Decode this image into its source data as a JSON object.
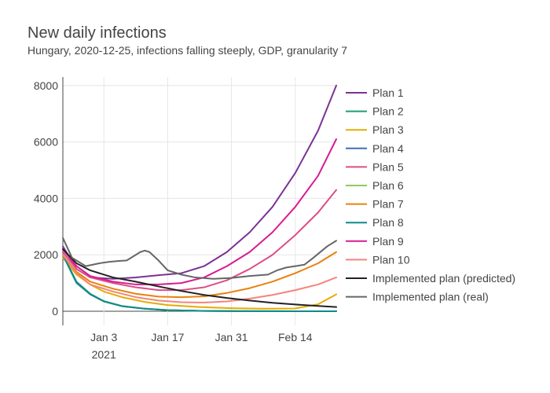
{
  "chart_data": {
    "type": "line",
    "title": "New daily infections",
    "subtitle": "Hungary, 2020-12-25, infections falling steeply, GDP, granularity 7",
    "x_axis": {
      "type": "date",
      "range": [
        "2020-12-25",
        "2021-02-23"
      ],
      "ticks": [
        {
          "date": "2021-01-03",
          "label": "Jan 3",
          "sublabel": "2021"
        },
        {
          "date": "2021-01-17",
          "label": "Jan 17"
        },
        {
          "date": "2021-01-31",
          "label": "Jan 31"
        },
        {
          "date": "2021-02-14",
          "label": "Feb 14"
        }
      ]
    },
    "y_axis": {
      "range": [
        -500,
        8300
      ],
      "ticks": [
        0,
        2000,
        4000,
        6000,
        8000
      ],
      "tick_labels": [
        "0",
        "2000",
        "4000",
        "6000",
        "8000"
      ]
    },
    "grid": true,
    "legend_position": "right",
    "series": [
      {
        "name": "Plan 1",
        "color": "#7b3294",
        "points": [
          [
            "2020-12-25",
            2300
          ],
          [
            "2020-12-28",
            1500
          ],
          [
            "2020-12-31",
            1200
          ],
          [
            "2021-01-05",
            1150
          ],
          [
            "2021-01-10",
            1200
          ],
          [
            "2021-01-15",
            1280
          ],
          [
            "2021-01-20",
            1350
          ],
          [
            "2021-01-25",
            1600
          ],
          [
            "2021-01-30",
            2100
          ],
          [
            "2021-02-04",
            2800
          ],
          [
            "2021-02-09",
            3700
          ],
          [
            "2021-02-14",
            4900
          ],
          [
            "2021-02-19",
            6400
          ],
          [
            "2021-02-23",
            8000
          ]
        ]
      },
      {
        "name": "Plan 2",
        "color": "#1b9e77",
        "points": [
          [
            "2020-12-25",
            2000
          ],
          [
            "2020-12-28",
            1000
          ],
          [
            "2020-12-31",
            600
          ],
          [
            "2021-01-03",
            350
          ],
          [
            "2021-01-07",
            180
          ],
          [
            "2021-01-12",
            90
          ],
          [
            "2021-01-17",
            40
          ],
          [
            "2021-01-24",
            15
          ],
          [
            "2021-02-01",
            5
          ],
          [
            "2021-02-23",
            0
          ]
        ]
      },
      {
        "name": "Plan 3",
        "color": "#e6ab02",
        "points": [
          [
            "2020-12-25",
            1900
          ],
          [
            "2020-12-28",
            1300
          ],
          [
            "2020-12-31",
            950
          ],
          [
            "2021-01-03",
            700
          ],
          [
            "2021-01-07",
            500
          ],
          [
            "2021-01-12",
            330
          ],
          [
            "2021-01-17",
            220
          ],
          [
            "2021-01-24",
            150
          ],
          [
            "2021-01-31",
            110
          ],
          [
            "2021-02-07",
            90
          ],
          [
            "2021-02-14",
            100
          ],
          [
            "2021-02-19",
            250
          ],
          [
            "2021-02-23",
            600
          ]
        ]
      },
      {
        "name": "Plan 4",
        "color": "#3f6fb5",
        "points": [
          [
            "2020-12-25",
            2000
          ],
          [
            "2020-12-28",
            1050
          ],
          [
            "2020-12-31",
            620
          ],
          [
            "2021-01-03",
            360
          ],
          [
            "2021-01-07",
            185
          ],
          [
            "2021-01-12",
            92
          ],
          [
            "2021-01-17",
            42
          ],
          [
            "2021-01-24",
            16
          ],
          [
            "2021-02-01",
            5
          ],
          [
            "2021-02-23",
            0
          ]
        ]
      },
      {
        "name": "Plan 5",
        "color": "#d94f86",
        "points": [
          [
            "2020-12-25",
            2100
          ],
          [
            "2020-12-28",
            1500
          ],
          [
            "2020-12-31",
            1200
          ],
          [
            "2021-01-05",
            1000
          ],
          [
            "2021-01-10",
            850
          ],
          [
            "2021-01-15",
            750
          ],
          [
            "2021-01-20",
            750
          ],
          [
            "2021-01-25",
            850
          ],
          [
            "2021-01-30",
            1100
          ],
          [
            "2021-02-04",
            1500
          ],
          [
            "2021-02-09",
            2000
          ],
          [
            "2021-02-14",
            2700
          ],
          [
            "2021-02-19",
            3500
          ],
          [
            "2021-02-23",
            4300
          ]
        ]
      },
      {
        "name": "Plan 6",
        "color": "#8fc95f",
        "points": [
          [
            "2020-12-25",
            2000
          ],
          [
            "2020-12-28",
            1030
          ],
          [
            "2020-12-31",
            610
          ],
          [
            "2021-01-03",
            355
          ],
          [
            "2021-01-07",
            182
          ],
          [
            "2021-01-12",
            91
          ],
          [
            "2021-01-17",
            41
          ],
          [
            "2021-01-24",
            15
          ],
          [
            "2021-02-01",
            5
          ],
          [
            "2021-02-23",
            0
          ]
        ]
      },
      {
        "name": "Plan 7",
        "color": "#e8820c",
        "points": [
          [
            "2020-12-25",
            2000
          ],
          [
            "2020-12-28",
            1400
          ],
          [
            "2020-12-31",
            1050
          ],
          [
            "2021-01-05",
            800
          ],
          [
            "2021-01-10",
            620
          ],
          [
            "2021-01-15",
            520
          ],
          [
            "2021-01-20",
            500
          ],
          [
            "2021-01-25",
            530
          ],
          [
            "2021-01-30",
            650
          ],
          [
            "2021-02-04",
            820
          ],
          [
            "2021-02-09",
            1050
          ],
          [
            "2021-02-14",
            1350
          ],
          [
            "2021-02-19",
            1700
          ],
          [
            "2021-02-23",
            2100
          ]
        ]
      },
      {
        "name": "Plan 8",
        "color": "#0b8b8b",
        "points": [
          [
            "2020-12-25",
            2000
          ],
          [
            "2020-12-28",
            1020
          ],
          [
            "2020-12-31",
            605
          ],
          [
            "2021-01-03",
            352
          ],
          [
            "2021-01-07",
            181
          ],
          [
            "2021-01-12",
            90
          ],
          [
            "2021-01-17",
            40
          ],
          [
            "2021-01-24",
            15
          ],
          [
            "2021-02-01",
            5
          ],
          [
            "2021-02-23",
            0
          ]
        ]
      },
      {
        "name": "Plan 9",
        "color": "#d81b93",
        "points": [
          [
            "2020-12-25",
            2200
          ],
          [
            "2020-12-28",
            1600
          ],
          [
            "2020-12-31",
            1250
          ],
          [
            "2021-01-05",
            1050
          ],
          [
            "2021-01-10",
            950
          ],
          [
            "2021-01-15",
            950
          ],
          [
            "2021-01-20",
            1000
          ],
          [
            "2021-01-25",
            1200
          ],
          [
            "2021-01-30",
            1600
          ],
          [
            "2021-02-04",
            2100
          ],
          [
            "2021-02-09",
            2800
          ],
          [
            "2021-02-14",
            3700
          ],
          [
            "2021-02-19",
            4800
          ],
          [
            "2021-02-23",
            6100
          ]
        ]
      },
      {
        "name": "Plan 10",
        "color": "#f4847a",
        "points": [
          [
            "2020-12-25",
            2000
          ],
          [
            "2020-12-28",
            1350
          ],
          [
            "2020-12-31",
            950
          ],
          [
            "2021-01-05",
            700
          ],
          [
            "2021-01-10",
            500
          ],
          [
            "2021-01-15",
            380
          ],
          [
            "2021-01-20",
            320
          ],
          [
            "2021-01-25",
            310
          ],
          [
            "2021-01-30",
            350
          ],
          [
            "2021-02-04",
            450
          ],
          [
            "2021-02-09",
            580
          ],
          [
            "2021-02-14",
            750
          ],
          [
            "2021-02-19",
            950
          ],
          [
            "2021-02-23",
            1200
          ]
        ]
      },
      {
        "name": "Implemented plan (predicted)",
        "color": "#222222",
        "points": [
          [
            "2020-12-25",
            2200
          ],
          [
            "2020-12-28",
            1700
          ],
          [
            "2020-12-31",
            1450
          ],
          [
            "2021-01-05",
            1200
          ],
          [
            "2021-01-10",
            1050
          ],
          [
            "2021-01-15",
            880
          ],
          [
            "2021-01-20",
            720
          ],
          [
            "2021-01-25",
            580
          ],
          [
            "2021-01-30",
            470
          ],
          [
            "2021-02-04",
            380
          ],
          [
            "2021-02-09",
            300
          ],
          [
            "2021-02-14",
            240
          ],
          [
            "2021-02-19",
            190
          ],
          [
            "2021-02-23",
            150
          ]
        ]
      },
      {
        "name": "Implemented plan (real)",
        "color": "#666666",
        "points": [
          [
            "2020-12-25",
            2600
          ],
          [
            "2020-12-27",
            1900
          ],
          [
            "2020-12-30",
            1600
          ],
          [
            "2021-01-02",
            1700
          ],
          [
            "2021-01-04",
            1750
          ],
          [
            "2021-01-06",
            1780
          ],
          [
            "2021-01-08",
            1800
          ],
          [
            "2021-01-10",
            2000
          ],
          [
            "2021-01-11",
            2100
          ],
          [
            "2021-01-12",
            2150
          ],
          [
            "2021-01-13",
            2100
          ],
          [
            "2021-01-15",
            1800
          ],
          [
            "2021-01-17",
            1450
          ],
          [
            "2021-01-20",
            1300
          ],
          [
            "2021-01-23",
            1200
          ],
          [
            "2021-01-27",
            1150
          ],
          [
            "2021-01-31",
            1180
          ],
          [
            "2021-02-04",
            1250
          ],
          [
            "2021-02-08",
            1300
          ],
          [
            "2021-02-10",
            1450
          ],
          [
            "2021-02-12",
            1550
          ],
          [
            "2021-02-14",
            1600
          ],
          [
            "2021-02-16",
            1650
          ],
          [
            "2021-02-18",
            1900
          ],
          [
            "2021-02-21",
            2300
          ],
          [
            "2021-02-23",
            2500
          ]
        ]
      }
    ]
  }
}
